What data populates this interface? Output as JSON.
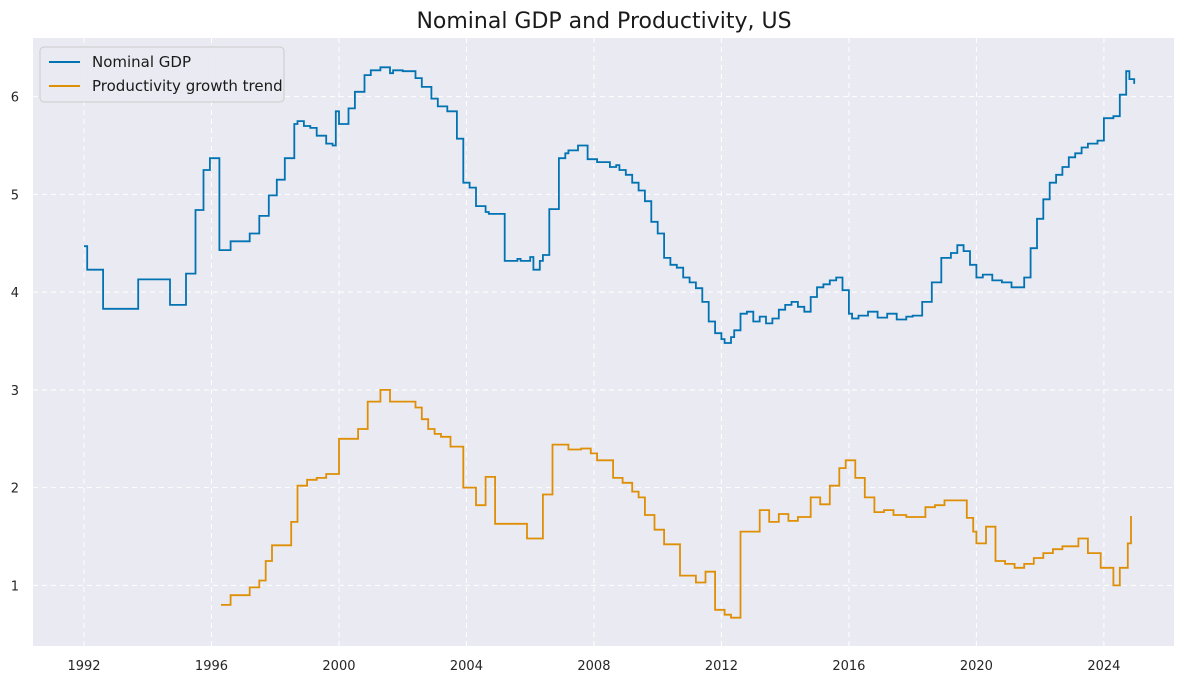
{
  "chart_data": {
    "type": "line",
    "title": "Nominal GDP and Productivity, US",
    "xlabel": "",
    "ylabel": "",
    "xlim": [
      1990.4,
      2026.2
    ],
    "ylim": [
      0.38,
      6.6
    ],
    "x_ticks": [
      1992,
      1996,
      2000,
      2004,
      2008,
      2012,
      2016,
      2020,
      2024
    ],
    "y_ticks": [
      1,
      2,
      3,
      4,
      5,
      6
    ],
    "grid": true,
    "legend_position": "top-left",
    "colors": {
      "background": "#eaeaf2",
      "grid": "#ffffff"
    },
    "series": [
      {
        "name": "Nominal GDP",
        "color": "#0173b2",
        "style": "step",
        "x": [
          1992.0,
          1992.1,
          1992.6,
          1993.7,
          1994.7,
          1995.2,
          1995.5,
          1995.75,
          1995.95,
          1996.25,
          1996.6,
          1997.2,
          1997.5,
          1997.8,
          1998.05,
          1998.3,
          1998.6,
          1998.7,
          1998.9,
          1999.1,
          1999.3,
          1999.6,
          1999.8,
          1999.9,
          2000.0,
          2000.3,
          2000.5,
          2000.8,
          2001.0,
          2001.3,
          2001.6,
          2001.7,
          2002.0,
          2002.4,
          2002.6,
          2002.9,
          2003.1,
          2003.4,
          2003.7,
          2003.9,
          2004.1,
          2004.3,
          2004.6,
          2004.7,
          2005.2,
          2005.6,
          2005.7,
          2006.0,
          2006.1,
          2006.3,
          2006.4,
          2006.6,
          2006.9,
          2007.1,
          2007.2,
          2007.5,
          2007.8,
          2008.1,
          2008.5,
          2008.7,
          2008.8,
          2009.0,
          2009.2,
          2009.4,
          2009.6,
          2009.8,
          2010.0,
          2010.2,
          2010.4,
          2010.6,
          2010.8,
          2011.0,
          2011.2,
          2011.4,
          2011.6,
          2011.8,
          2012.0,
          2012.1,
          2012.3,
          2012.4,
          2012.6,
          2012.8,
          2013.0,
          2013.2,
          2013.4,
          2013.6,
          2013.8,
          2014.0,
          2014.2,
          2014.4,
          2014.6,
          2014.8,
          2015.0,
          2015.2,
          2015.4,
          2015.6,
          2015.8,
          2016.0,
          2016.1,
          2016.3,
          2016.6,
          2016.9,
          2017.2,
          2017.5,
          2017.8,
          2018.0,
          2018.3,
          2018.6,
          2018.9,
          2019.2,
          2019.4,
          2019.6,
          2019.8,
          2020.0,
          2020.2,
          2020.5,
          2020.8,
          2021.1,
          2021.5,
          2021.7,
          2021.9,
          2022.1,
          2022.3,
          2022.5,
          2022.7,
          2022.9,
          2023.1,
          2023.3,
          2023.5,
          2023.8,
          2024.0,
          2024.3,
          2024.5,
          2024.7,
          2024.8,
          2024.95
        ],
        "values": [
          4.47,
          4.23,
          3.83,
          4.13,
          3.87,
          4.19,
          4.84,
          5.25,
          5.37,
          4.43,
          4.52,
          4.6,
          4.78,
          4.99,
          5.15,
          5.37,
          5.72,
          5.75,
          5.7,
          5.68,
          5.6,
          5.52,
          5.5,
          5.85,
          5.72,
          5.88,
          6.05,
          6.22,
          6.27,
          6.3,
          6.24,
          6.27,
          6.26,
          6.19,
          6.1,
          5.98,
          5.9,
          5.85,
          5.57,
          5.12,
          5.07,
          4.88,
          4.82,
          4.8,
          4.32,
          4.34,
          4.32,
          4.36,
          4.23,
          4.32,
          4.38,
          4.85,
          5.37,
          5.42,
          5.45,
          5.5,
          5.36,
          5.33,
          5.28,
          5.3,
          5.25,
          5.2,
          5.12,
          5.04,
          4.93,
          4.72,
          4.6,
          4.35,
          4.28,
          4.25,
          4.15,
          4.1,
          4.04,
          3.9,
          3.7,
          3.58,
          3.52,
          3.48,
          3.54,
          3.61,
          3.78,
          3.8,
          3.7,
          3.75,
          3.68,
          3.73,
          3.82,
          3.87,
          3.9,
          3.85,
          3.8,
          3.95,
          4.05,
          4.08,
          4.12,
          4.15,
          4.02,
          3.78,
          3.73,
          3.76,
          3.8,
          3.74,
          3.78,
          3.72,
          3.75,
          3.76,
          3.9,
          4.1,
          4.35,
          4.4,
          4.48,
          4.42,
          4.28,
          4.15,
          4.18,
          4.12,
          4.1,
          4.05,
          4.15,
          4.45,
          4.75,
          4.95,
          5.12,
          5.2,
          5.28,
          5.38,
          5.42,
          5.48,
          5.52,
          5.55,
          5.78,
          5.8,
          6.02,
          6.26,
          6.18,
          6.13
        ]
      },
      {
        "name": "Productivity growth trend",
        "color": "#de8f05",
        "style": "step",
        "x": [
          1996.3,
          1996.6,
          1996.9,
          1997.2,
          1997.5,
          1997.7,
          1997.9,
          1998.2,
          1998.5,
          1998.7,
          1999.0,
          1999.3,
          1999.6,
          2000.0,
          2000.6,
          2000.9,
          2001.3,
          2001.6,
          2002.0,
          2002.4,
          2002.6,
          2002.8,
          2003.0,
          2003.2,
          2003.5,
          2003.9,
          2004.3,
          2004.6,
          2004.9,
          2005.6,
          2005.9,
          2006.4,
          2006.7,
          2007.2,
          2007.6,
          2007.9,
          2008.1,
          2008.4,
          2008.6,
          2008.9,
          2009.2,
          2009.4,
          2009.6,
          2009.9,
          2010.2,
          2010.7,
          2011.2,
          2011.5,
          2011.8,
          2012.1,
          2012.3,
          2012.6,
          2013.2,
          2013.5,
          2013.8,
          2014.1,
          2014.4,
          2014.8,
          2015.1,
          2015.4,
          2015.7,
          2015.9,
          2016.2,
          2016.5,
          2016.8,
          2017.1,
          2017.4,
          2017.8,
          2018.1,
          2018.4,
          2018.7,
          2019.0,
          2019.4,
          2019.7,
          2019.9,
          2020.0,
          2020.3,
          2020.6,
          2020.9,
          2021.2,
          2021.5,
          2021.8,
          2022.1,
          2022.4,
          2022.7,
          2023.0,
          2023.2,
          2023.5,
          2023.9,
          2024.1,
          2024.3,
          2024.5,
          2024.75,
          2024.85
        ],
        "values": [
          0.8,
          0.9,
          0.9,
          0.98,
          1.05,
          1.25,
          1.41,
          1.41,
          1.65,
          2.02,
          2.08,
          2.1,
          2.14,
          2.5,
          2.6,
          2.88,
          3.0,
          2.88,
          2.88,
          2.82,
          2.7,
          2.6,
          2.55,
          2.52,
          2.42,
          2.0,
          1.82,
          2.11,
          1.63,
          1.63,
          1.48,
          1.93,
          2.44,
          2.39,
          2.4,
          2.35,
          2.28,
          2.28,
          2.1,
          2.05,
          1.96,
          1.9,
          1.72,
          1.57,
          1.42,
          1.1,
          1.03,
          1.14,
          0.75,
          0.7,
          0.67,
          1.55,
          1.77,
          1.65,
          1.73,
          1.66,
          1.7,
          1.9,
          1.83,
          2.02,
          2.2,
          2.28,
          2.1,
          1.9,
          1.75,
          1.77,
          1.72,
          1.7,
          1.7,
          1.8,
          1.82,
          1.87,
          1.87,
          1.69,
          1.55,
          1.43,
          1.6,
          1.25,
          1.22,
          1.18,
          1.22,
          1.28,
          1.33,
          1.37,
          1.4,
          1.4,
          1.48,
          1.33,
          1.18,
          1.18,
          1.0,
          1.18,
          1.43,
          1.71
        ]
      }
    ]
  }
}
